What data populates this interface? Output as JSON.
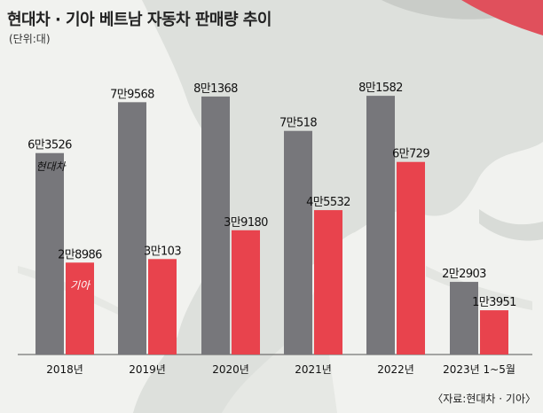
{
  "chart_data": {
    "type": "bar",
    "title": "현대차 · 기아 베트남 자동차 판매량 추이",
    "unit_note": "(단위:대)",
    "categories": [
      "2018년",
      "2019년",
      "2020년",
      "2021년",
      "2022년",
      "2023년 1~5월"
    ],
    "series": [
      {
        "name": "현대차",
        "color": "#77777b",
        "values": [
          63526,
          79568,
          81368,
          70518,
          81582,
          22903
        ],
        "labels": [
          "6만3526",
          "7만9568",
          "8만1368",
          "7만518",
          "8만1582",
          "2만2903"
        ]
      },
      {
        "name": "기아",
        "color": "#e8434d",
        "values": [
          28986,
          30103,
          39180,
          45532,
          60729,
          13951
        ],
        "labels": [
          "2만8986",
          "3만103",
          "3만9180",
          "4만5532",
          "6만729",
          "1만3951"
        ]
      }
    ],
    "ylim": [
      0,
      90000
    ],
    "legend": "inline-first-group",
    "grid": false
  },
  "source": "〈자료:현대차 · 기아〉"
}
